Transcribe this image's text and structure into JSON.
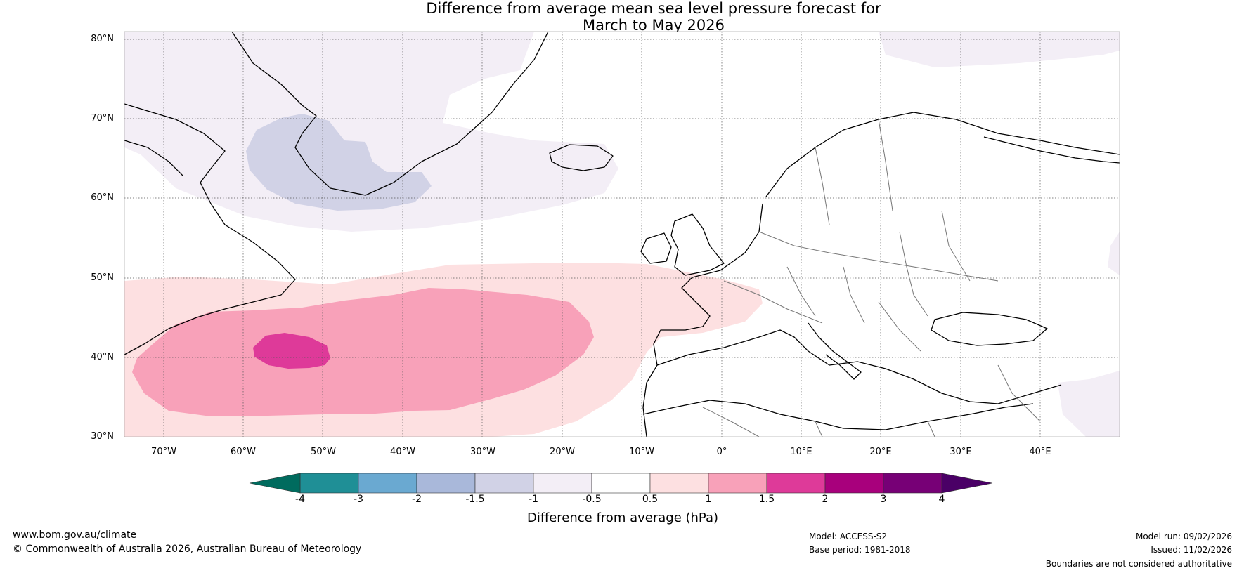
{
  "title_line1": "Difference from average mean sea level pressure forecast for",
  "title_line2": "March to May 2026",
  "lat_labels": [
    "80°N",
    "70°N",
    "60°N",
    "50°N",
    "40°N",
    "30°N"
  ],
  "lon_labels": [
    "70°W",
    "60°W",
    "50°W",
    "40°W",
    "30°W",
    "20°W",
    "10°W",
    "0°",
    "10°E",
    "20°E",
    "30°E",
    "40°E"
  ],
  "colorbar": {
    "title": "Difference from average (hPa)",
    "ticks": [
      "-4",
      "-3",
      "-2",
      "-1.5",
      "-1",
      "-0.5",
      "0.5",
      "1",
      "1.5",
      "2",
      "3",
      "4"
    ],
    "colors": [
      "#1f8f96",
      "#6aa9d1",
      "#a9b8da",
      "#d1d2e6",
      "#f3eef6",
      "#ffffff",
      "#fde0e1",
      "#f8a1b9",
      "#de3a99",
      "#a8007c",
      "#770076"
    ],
    "under_color": "#006b5e",
    "over_color": "#4a0066"
  },
  "anomaly_colors": {
    "neg_half": "#f3eef6",
    "neg_one": "#d1d2e6",
    "pos_half": "#fde0e1",
    "pos_one": "#f8a1b9",
    "pos_onehalf": "#de3a99"
  },
  "footer": {
    "url": "www.bom.gov.au/climate",
    "copyright": "© Commonwealth of Australia 2026, Australian Bureau of Meteorology",
    "model": "Model: ACCESS-S2",
    "base_period": "Base period: 1981-2018",
    "model_run": "Model run: 09/02/2026",
    "issued": "Issued: 11/02/2026",
    "disclaimer": "Boundaries are not considered authoritative"
  }
}
